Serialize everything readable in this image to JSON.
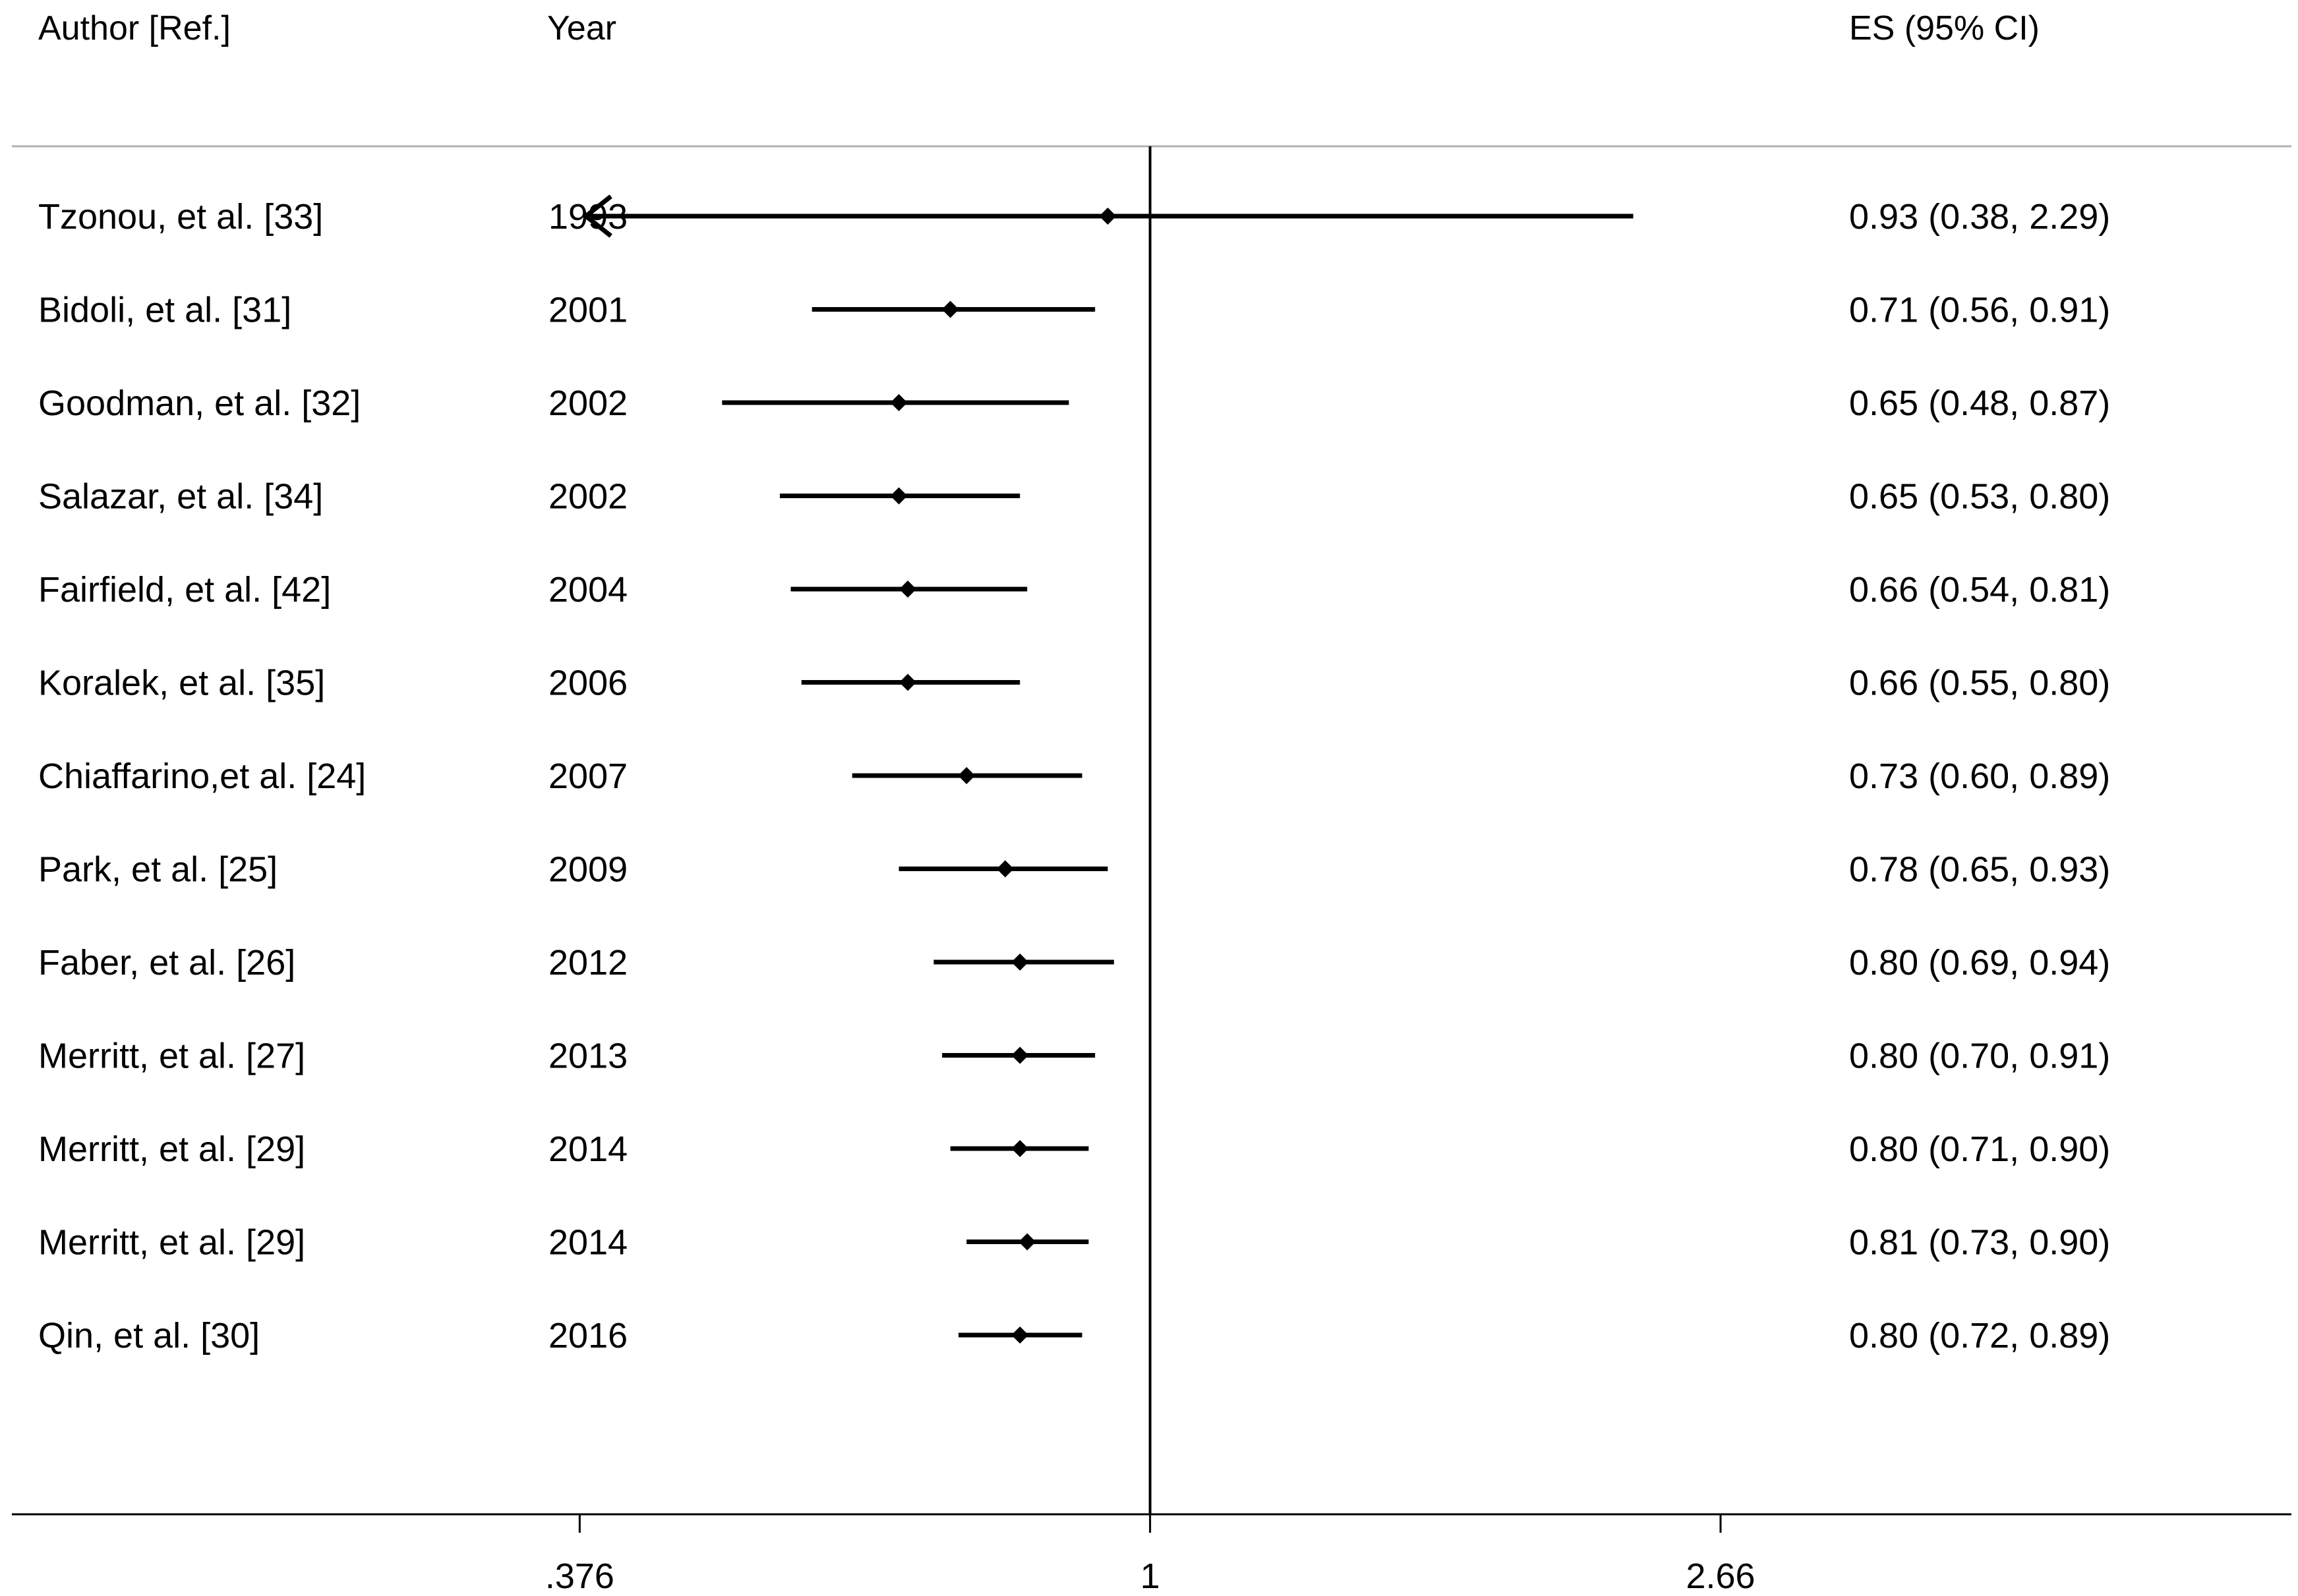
{
  "header": {
    "author_label": "Author [Ref.]",
    "year_label": "Year",
    "es_label": "ES (95% CI)"
  },
  "chart_data": {
    "type": "forest",
    "scale": "log",
    "xlim": [
      0.142,
      7.08
    ],
    "null_line": 1,
    "x_ticks": [
      {
        "value": 0.376,
        "label": ".376"
      },
      {
        "value": 1,
        "label": "1"
      },
      {
        "value": 2.66,
        "label": "2.66"
      }
    ],
    "studies": [
      {
        "author": "Tzonou, et al. [33]",
        "year": "1993",
        "es": 0.93,
        "lo": 0.38,
        "hi": 2.29,
        "es_text": "0.93 (0.38, 2.29)",
        "arrow_left": true
      },
      {
        "author": "Bidoli, et al. [31]",
        "year": "2001",
        "es": 0.71,
        "lo": 0.56,
        "hi": 0.91,
        "es_text": "0.71 (0.56, 0.91)"
      },
      {
        "author": "Goodman, et al. [32]",
        "year": "2002",
        "es": 0.65,
        "lo": 0.48,
        "hi": 0.87,
        "es_text": "0.65 (0.48, 0.87)"
      },
      {
        "author": "Salazar, et al. [34]",
        "year": "2002",
        "es": 0.65,
        "lo": 0.53,
        "hi": 0.8,
        "es_text": "0.65 (0.53, 0.80)"
      },
      {
        "author": "Fairfield, et al. [42]",
        "year": "2004",
        "es": 0.66,
        "lo": 0.54,
        "hi": 0.81,
        "es_text": "0.66 (0.54, 0.81)"
      },
      {
        "author": "Koralek, et al. [35]",
        "year": "2006",
        "es": 0.66,
        "lo": 0.55,
        "hi": 0.8,
        "es_text": "0.66 (0.55, 0.80)"
      },
      {
        "author": "Chiaffarino,et al. [24]",
        "year": "2007",
        "es": 0.73,
        "lo": 0.6,
        "hi": 0.89,
        "es_text": "0.73 (0.60, 0.89)"
      },
      {
        "author": "Park, et al. [25]",
        "year": "2009",
        "es": 0.78,
        "lo": 0.65,
        "hi": 0.93,
        "es_text": "0.78 (0.65, 0.93)"
      },
      {
        "author": "Faber, et al. [26]",
        "year": "2012",
        "es": 0.8,
        "lo": 0.69,
        "hi": 0.94,
        "es_text": "0.80 (0.69, 0.94)"
      },
      {
        "author": "Merritt, et al. [27]",
        "year": "2013",
        "es": 0.8,
        "lo": 0.7,
        "hi": 0.91,
        "es_text": "0.80 (0.70, 0.91)"
      },
      {
        "author": "Merritt, et al. [29]",
        "year": "2014",
        "es": 0.8,
        "lo": 0.71,
        "hi": 0.9,
        "es_text": "0.80 (0.71, 0.90)"
      },
      {
        "author": "Merritt, et al. [29]",
        "year": "2014",
        "es": 0.81,
        "lo": 0.73,
        "hi": 0.9,
        "es_text": "0.81 (0.73, 0.90)"
      },
      {
        "author": "Qin, et al. [30]",
        "year": "2016",
        "es": 0.8,
        "lo": 0.72,
        "hi": 0.89,
        "es_text": "0.80 (0.72, 0.89)"
      }
    ]
  }
}
